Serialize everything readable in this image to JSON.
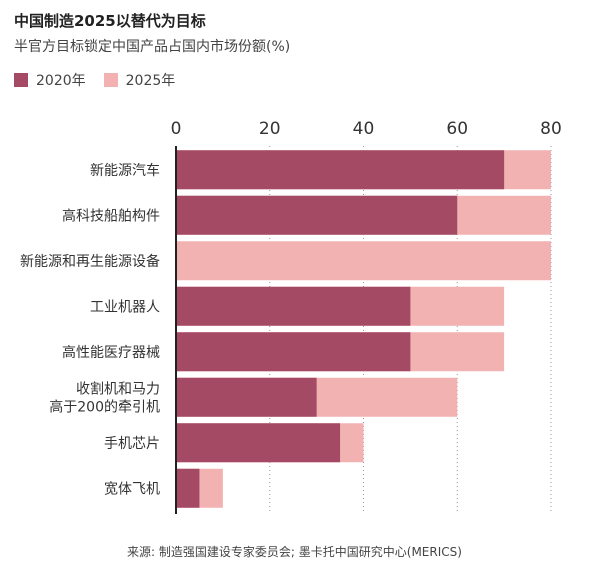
{
  "title": "中国制造2025以替代为目标",
  "subtitle": "半官方目标锁定中国产品占国内市场份额(%)",
  "colors": {
    "series_2020": "#a54a65",
    "series_2025": "#f1b2b1",
    "axis": "#222222",
    "grid": "#999999"
  },
  "source": "来源: 制造强国建设专家委员会; 墨卡托中国研究中心(MERICS)",
  "chart_data": {
    "type": "bar",
    "orientation": "horizontal",
    "stacked_overlay": true,
    "categories": [
      "新能源汽车",
      "高科技船舶构件",
      "新能源和再生能源设备",
      "工业机器人",
      "高性能医疗器械",
      "收割机和马力\n高于200的牵引机",
      "手机芯片",
      "宽体飞机"
    ],
    "series": [
      {
        "name": "2020年",
        "values": [
          70,
          60,
          0,
          50,
          50,
          30,
          35,
          5
        ]
      },
      {
        "name": "2025年",
        "values": [
          80,
          80,
          80,
          70,
          70,
          60,
          40,
          10
        ]
      }
    ],
    "xlim": [
      0,
      80
    ],
    "xticks": [
      0,
      20,
      40,
      60,
      80
    ],
    "xaxis_position": "top",
    "legend_position": "top-left",
    "grid": true
  }
}
